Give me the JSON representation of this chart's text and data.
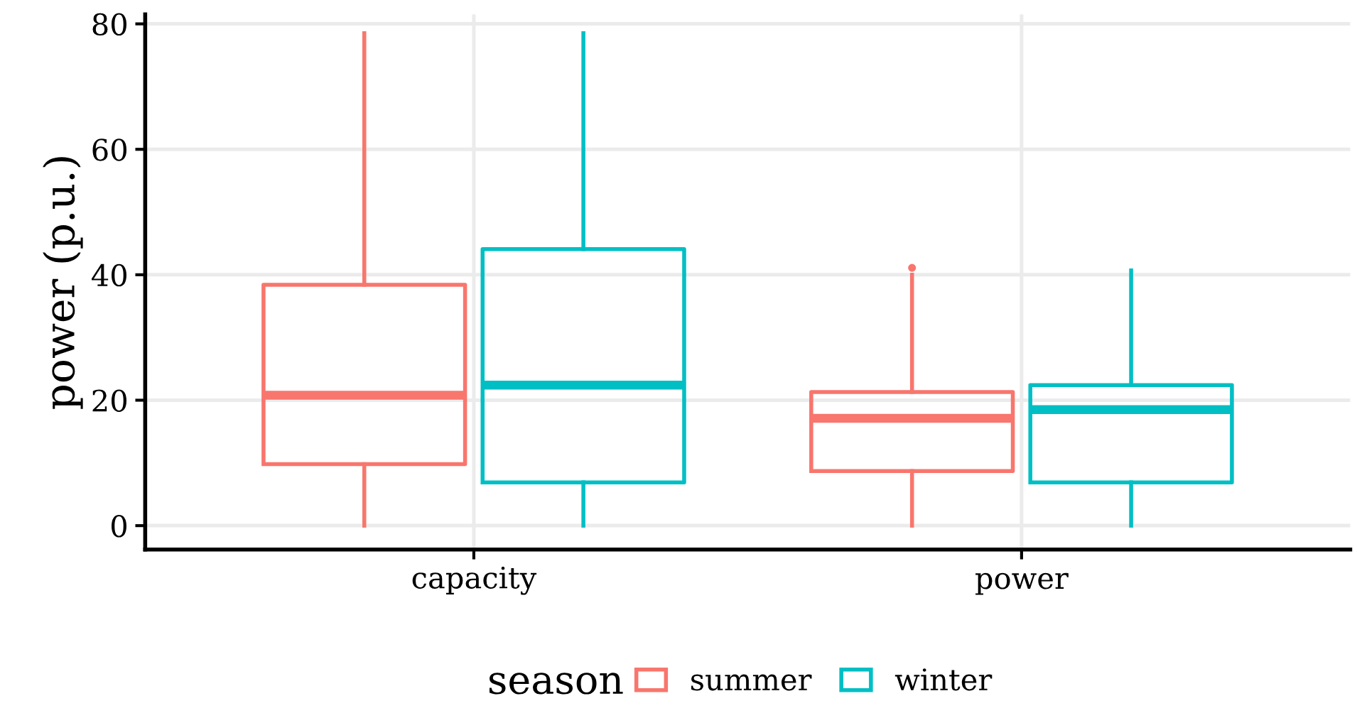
{
  "chart_data": {
    "type": "box",
    "ylabel": "power (p.u.)",
    "legend_title": "season",
    "categories": [
      "capacity",
      "power"
    ],
    "series": [
      {
        "name": "summer",
        "color": "#f8766d",
        "boxes": [
          {
            "low": 0,
            "q1": 9.8,
            "median": 20.8,
            "q3": 38.4,
            "high": 78.5
          },
          {
            "low": 0,
            "q1": 8.7,
            "median": 17.1,
            "q3": 21.3,
            "high": 40,
            "outliers": [
              41.1
            ]
          }
        ]
      },
      {
        "name": "winter",
        "color": "#00bfc4",
        "boxes": [
          {
            "low": 0,
            "q1": 6.9,
            "median": 22.4,
            "q3": 44.1,
            "high": 78.5
          },
          {
            "low": 0,
            "q1": 6.9,
            "median": 18.5,
            "q3": 22.4,
            "high": 40.7
          }
        ]
      }
    ],
    "ylim": [
      -3.8,
      81.5
    ],
    "yticks": [
      0,
      20,
      40,
      60,
      80
    ],
    "grid": true,
    "legend": "bottom"
  }
}
